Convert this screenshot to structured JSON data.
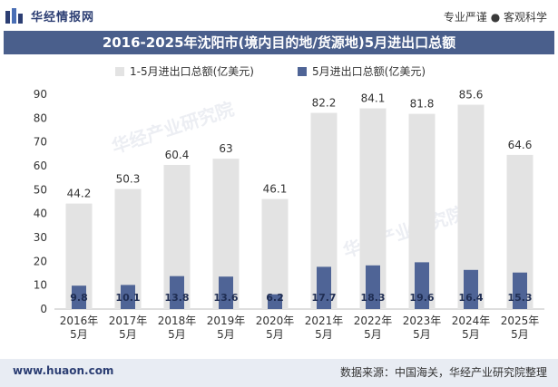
{
  "header": {
    "logo_text": "华经情报网",
    "tagline": "专业严谨 ● 客观科学"
  },
  "footer": {
    "url": "www.huaon.com",
    "source": "数据来源：中国海关，华经产业研究院整理"
  },
  "watermark": "华经产业研究院",
  "colors": {
    "title_bg": "#4a5f8c",
    "series_total": "#e3e3e3",
    "series_may": "#4f6496"
  },
  "chart_data": {
    "type": "bar",
    "title": "2016-2025年沈阳市(境内目的地/货源地)5月进出口总额",
    "categories": [
      "2016年\n5月",
      "2017年\n5月",
      "2018年\n5月",
      "2019年\n5月",
      "2020年\n5月",
      "2021年\n5月",
      "2022年\n5月",
      "2023年\n5月",
      "2024年\n5月",
      "2025年\n5月"
    ],
    "series": [
      {
        "name": "1-5月进出口总额(亿美元)",
        "values": [
          44.2,
          50.3,
          60.4,
          63,
          46.1,
          82.2,
          84.1,
          81.8,
          85.6,
          64.6
        ]
      },
      {
        "name": "5月进出口总额(亿美元)",
        "values": [
          9.8,
          10.1,
          13.8,
          13.6,
          6.2,
          17.7,
          18.3,
          19.6,
          16.4,
          15.3
        ]
      }
    ],
    "ylim": [
      0,
      90
    ],
    "yticks": [
      0,
      10,
      20,
      30,
      40,
      50,
      60,
      70,
      80,
      90
    ],
    "grid": false,
    "legend_position": "top-center"
  }
}
